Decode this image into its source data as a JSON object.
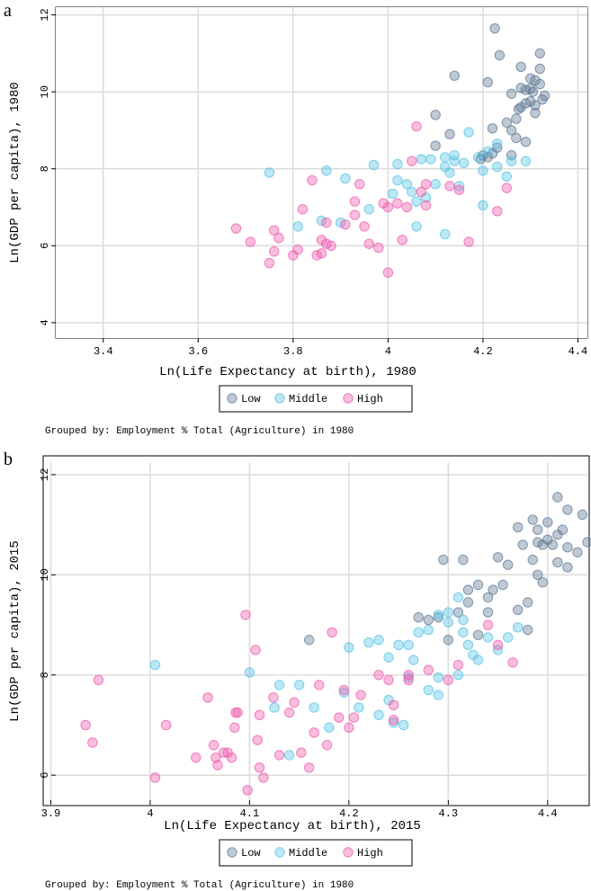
{
  "colors": {
    "low": "#5f7993",
    "middle": "#58c3e4",
    "high": "#ef5aac",
    "grid": "#dddddd",
    "frame": "#000000"
  },
  "chart_data": [
    {
      "type": "scatter",
      "panel": "a",
      "xlabel": "Ln(Life Expectancy at birth), 1980",
      "ylabel": "Ln(GDP per capita), 1980",
      "xlim": [
        3.3,
        4.42
      ],
      "ylim": [
        3.6,
        12.2
      ],
      "xticks": [
        3.4,
        3.6,
        3.8,
        4.0,
        4.2,
        4.4
      ],
      "xtick_labels": [
        "3.4",
        "3.6",
        "3.8",
        "4",
        "4.2",
        "4.4"
      ],
      "yticks": [
        4,
        6,
        8,
        10,
        12
      ],
      "ytick_labels": [
        "4",
        "6",
        "8",
        "10",
        "12"
      ],
      "grid": true,
      "legend": {
        "position": "bottom",
        "entries": [
          "Low",
          "Middle",
          "High"
        ]
      },
      "note": "Grouped by: Employment % Total (Agriculture) in 1980",
      "series": [
        {
          "name": "Low",
          "points": [
            [
              4.225,
              11.65
            ],
            [
              4.235,
              10.95
            ],
            [
              4.32,
              11.0
            ],
            [
              4.14,
              10.42
            ],
            [
              4.28,
              10.65
            ],
            [
              4.32,
              10.6
            ],
            [
              4.32,
              10.2
            ],
            [
              4.3,
              10.35
            ],
            [
              4.31,
              10.3
            ],
            [
              4.28,
              10.1
            ],
            [
              4.29,
              10.05
            ],
            [
              4.3,
              10.08
            ],
            [
              4.305,
              10.0
            ],
            [
              4.21,
              10.25
            ],
            [
              4.26,
              9.95
            ],
            [
              4.3,
              9.75
            ],
            [
              4.29,
              9.7
            ],
            [
              4.275,
              9.55
            ],
            [
              4.28,
              9.6
            ],
            [
              4.27,
              9.3
            ],
            [
              4.25,
              9.2
            ],
            [
              4.31,
              9.65
            ],
            [
              4.325,
              9.8
            ],
            [
              4.33,
              9.9
            ],
            [
              4.1,
              9.4
            ],
            [
              4.22,
              9.05
            ],
            [
              4.26,
              9.0
            ],
            [
              4.27,
              8.8
            ],
            [
              4.23,
              8.55
            ],
            [
              4.26,
              8.35
            ],
            [
              4.13,
              8.9
            ],
            [
              4.1,
              8.6
            ],
            [
              4.21,
              8.3
            ],
            [
              4.195,
              8.25
            ],
            [
              4.2,
              8.35
            ],
            [
              4.22,
              8.4
            ],
            [
              4.29,
              8.7
            ],
            [
              4.31,
              9.45
            ]
          ]
        },
        {
          "name": "Middle",
          "points": [
            [
              3.75,
              7.9
            ],
            [
              3.87,
              7.95
            ],
            [
              3.97,
              8.1
            ],
            [
              4.02,
              8.12
            ],
            [
              4.07,
              8.25
            ],
            [
              4.12,
              8.3
            ],
            [
              4.14,
              8.35
            ],
            [
              4.17,
              8.95
            ],
            [
              4.21,
              8.45
            ],
            [
              4.23,
              8.65
            ],
            [
              4.26,
              8.2
            ],
            [
              4.29,
              8.2
            ],
            [
              3.81,
              6.5
            ],
            [
              3.86,
              6.65
            ],
            [
              3.9,
              6.6
            ],
            [
              3.96,
              6.95
            ],
            [
              4.01,
              7.35
            ],
            [
              4.05,
              7.4
            ],
            [
              4.08,
              7.25
            ],
            [
              4.12,
              8.05
            ],
            [
              4.13,
              7.9
            ],
            [
              4.15,
              7.55
            ],
            [
              4.2,
              7.05
            ],
            [
              4.23,
              8.05
            ],
            [
              4.25,
              7.8
            ],
            [
              4.06,
              7.15
            ],
            [
              4.04,
              7.6
            ],
            [
              4.12,
              6.3
            ],
            [
              4.06,
              6.5
            ],
            [
              4.16,
              8.15
            ],
            [
              4.19,
              8.3
            ],
            [
              3.91,
              7.75
            ],
            [
              4.1,
              7.6
            ],
            [
              4.02,
              7.7
            ],
            [
              4.09,
              8.25
            ],
            [
              4.2,
              7.95
            ],
            [
              4.14,
              8.2
            ]
          ]
        },
        {
          "name": "High",
          "points": [
            [
              3.68,
              6.45
            ],
            [
              3.71,
              6.1
            ],
            [
              3.76,
              6.4
            ],
            [
              3.77,
              6.2
            ],
            [
              3.76,
              5.85
            ],
            [
              3.75,
              5.55
            ],
            [
              3.8,
              5.75
            ],
            [
              3.81,
              5.9
            ],
            [
              3.82,
              6.95
            ],
            [
              3.84,
              7.7
            ],
            [
              3.85,
              5.75
            ],
            [
              3.86,
              6.15
            ],
            [
              3.87,
              6.05
            ],
            [
              3.86,
              5.8
            ],
            [
              3.87,
              6.6
            ],
            [
              3.88,
              6.0
            ],
            [
              3.91,
              6.55
            ],
            [
              3.93,
              7.15
            ],
            [
              3.93,
              6.8
            ],
            [
              3.94,
              7.6
            ],
            [
              3.95,
              6.5
            ],
            [
              3.96,
              6.05
            ],
            [
              3.98,
              5.95
            ],
            [
              3.99,
              7.1
            ],
            [
              4.0,
              5.3
            ],
            [
              4.0,
              7.0
            ],
            [
              4.02,
              7.1
            ],
            [
              4.03,
              6.15
            ],
            [
              4.05,
              8.2
            ],
            [
              4.06,
              9.1
            ],
            [
              4.08,
              7.05
            ],
            [
              4.07,
              7.4
            ],
            [
              4.13,
              7.55
            ],
            [
              4.15,
              7.45
            ],
            [
              4.17,
              6.1
            ],
            [
              4.23,
              6.9
            ],
            [
              4.25,
              7.5
            ],
            [
              4.08,
              7.6
            ],
            [
              4.04,
              7.0
            ]
          ]
        }
      ]
    },
    {
      "type": "scatter",
      "panel": "b",
      "xlabel": "Ln(Life Expectancy at birth), 2015",
      "ylabel": "Ln(GDP per capita), 2015",
      "xlim": [
        3.905,
        4.44
      ],
      "ylim": [
        5.5,
        12.25
      ],
      "xticks": [
        3.9,
        4.0,
        4.1,
        4.2,
        4.3,
        4.4
      ],
      "xtick_labels": [
        "3.9",
        "4",
        "4.1",
        "4.2",
        "4.3",
        "4.4"
      ],
      "yticks": [
        6,
        8,
        10,
        12
      ],
      "ytick_labels": [
        "6",
        "8",
        "10",
        "12"
      ],
      "grid": true,
      "legend": {
        "position": "bottom",
        "entries": [
          "Low",
          "Middle",
          "High"
        ]
      },
      "note": "Grouped by: Employment % Total (Agriculture) in 1980",
      "series": [
        {
          "name": "Low",
          "points": [
            [
              4.41,
              11.55
            ],
            [
              4.42,
              11.3
            ],
            [
              4.435,
              11.2
            ],
            [
              4.4,
              11.05
            ],
            [
              4.385,
              11.1
            ],
            [
              4.39,
              10.9
            ],
            [
              4.41,
              10.8
            ],
            [
              4.415,
              10.9
            ],
            [
              4.4,
              10.7
            ],
            [
              4.395,
              10.6
            ],
            [
              4.39,
              10.65
            ],
            [
              4.42,
              10.55
            ],
            [
              4.43,
              10.45
            ],
            [
              4.44,
              10.65
            ],
            [
              4.41,
              10.25
            ],
            [
              4.42,
              10.15
            ],
            [
              4.405,
              10.6
            ],
            [
              4.37,
              10.95
            ],
            [
              4.375,
              10.6
            ],
            [
              4.385,
              10.3
            ],
            [
              4.36,
              10.2
            ],
            [
              4.35,
              10.35
            ],
            [
              4.355,
              9.8
            ],
            [
              4.345,
              9.7
            ],
            [
              4.34,
              9.55
            ],
            [
              4.32,
              9.45
            ],
            [
              4.31,
              9.25
            ],
            [
              4.315,
              10.3
            ],
            [
              4.295,
              10.3
            ],
            [
              4.33,
              9.8
            ],
            [
              4.29,
              9.15
            ],
            [
              4.28,
              9.1
            ],
            [
              4.3,
              8.7
            ],
            [
              4.33,
              8.8
            ],
            [
              4.37,
              9.3
            ],
            [
              4.38,
              8.9
            ],
            [
              4.39,
              10.0
            ],
            [
              4.395,
              9.85
            ],
            [
              4.16,
              8.7
            ],
            [
              4.27,
              9.15
            ],
            [
              4.32,
              9.7
            ],
            [
              4.34,
              9.25
            ],
            [
              4.38,
              9.45
            ]
          ]
        },
        {
          "name": "Middle",
          "points": [
            [
              4.005,
              8.2
            ],
            [
              4.1,
              8.05
            ],
            [
              4.13,
              7.8
            ],
            [
              4.15,
              7.8
            ],
            [
              4.125,
              7.35
            ],
            [
              4.165,
              7.35
            ],
            [
              4.195,
              7.65
            ],
            [
              4.2,
              8.55
            ],
            [
              4.22,
              8.65
            ],
            [
              4.23,
              8.7
            ],
            [
              4.24,
              8.35
            ],
            [
              4.25,
              8.6
            ],
            [
              4.26,
              8.6
            ],
            [
              4.27,
              8.85
            ],
            [
              4.28,
              8.9
            ],
            [
              4.29,
              9.2
            ],
            [
              4.3,
              9.25
            ],
            [
              4.3,
              9.05
            ],
            [
              4.31,
              9.55
            ],
            [
              4.315,
              9.1
            ],
            [
              4.32,
              8.6
            ],
            [
              4.325,
              8.4
            ],
            [
              4.33,
              8.3
            ],
            [
              4.34,
              8.75
            ],
            [
              4.35,
              8.5
            ],
            [
              4.36,
              8.75
            ],
            [
              4.37,
              8.95
            ],
            [
              4.31,
              8.0
            ],
            [
              4.29,
              7.95
            ],
            [
              4.28,
              7.7
            ],
            [
              4.26,
              7.95
            ],
            [
              4.24,
              7.5
            ],
            [
              4.23,
              7.2
            ],
            [
              4.245,
              7.05
            ],
            [
              4.255,
              7.0
            ],
            [
              4.21,
              7.35
            ],
            [
              4.18,
              6.95
            ],
            [
              4.14,
              6.4
            ],
            [
              4.29,
              7.6
            ],
            [
              4.265,
              8.3
            ],
            [
              4.315,
              8.85
            ]
          ]
        },
        {
          "name": "High",
          "points": [
            [
              3.935,
              7.0
            ],
            [
              3.942,
              6.65
            ],
            [
              3.948,
              7.9
            ],
            [
              4.005,
              5.95
            ],
            [
              4.016,
              7.0
            ],
            [
              4.046,
              6.35
            ],
            [
              4.058,
              7.55
            ],
            [
              4.064,
              6.6
            ],
            [
              4.066,
              6.35
            ],
            [
              4.068,
              6.2
            ],
            [
              4.074,
              6.45
            ],
            [
              4.078,
              6.45
            ],
            [
              4.082,
              6.35
            ],
            [
              4.085,
              6.95
            ],
            [
              4.086,
              7.25
            ],
            [
              4.088,
              7.25
            ],
            [
              4.096,
              9.2
            ],
            [
              4.098,
              5.7
            ],
            [
              4.106,
              8.5
            ],
            [
              4.108,
              6.7
            ],
            [
              4.11,
              6.15
            ],
            [
              4.114,
              5.95
            ],
            [
              4.124,
              7.55
            ],
            [
              4.13,
              6.4
            ],
            [
              4.14,
              7.25
            ],
            [
              4.145,
              7.45
            ],
            [
              4.152,
              6.45
            ],
            [
              4.16,
              6.15
            ],
            [
              4.165,
              6.85
            ],
            [
              4.17,
              7.8
            ],
            [
              4.178,
              6.6
            ],
            [
              4.183,
              8.85
            ],
            [
              4.19,
              7.15
            ],
            [
              4.2,
              6.95
            ],
            [
              4.205,
              7.15
            ],
            [
              4.212,
              7.6
            ],
            [
              4.23,
              8.0
            ],
            [
              4.24,
              7.9
            ],
            [
              4.245,
              7.4
            ],
            [
              4.26,
              8.0
            ],
            [
              4.28,
              8.1
            ],
            [
              4.3,
              7.9
            ],
            [
              4.31,
              8.2
            ],
            [
              4.34,
              9.0
            ],
            [
              4.35,
              8.6
            ],
            [
              4.365,
              8.25
            ],
            [
              4.245,
              7.1
            ],
            [
              4.26,
              7.9
            ],
            [
              4.195,
              7.7
            ],
            [
              4.11,
              7.2
            ]
          ]
        }
      ]
    }
  ]
}
